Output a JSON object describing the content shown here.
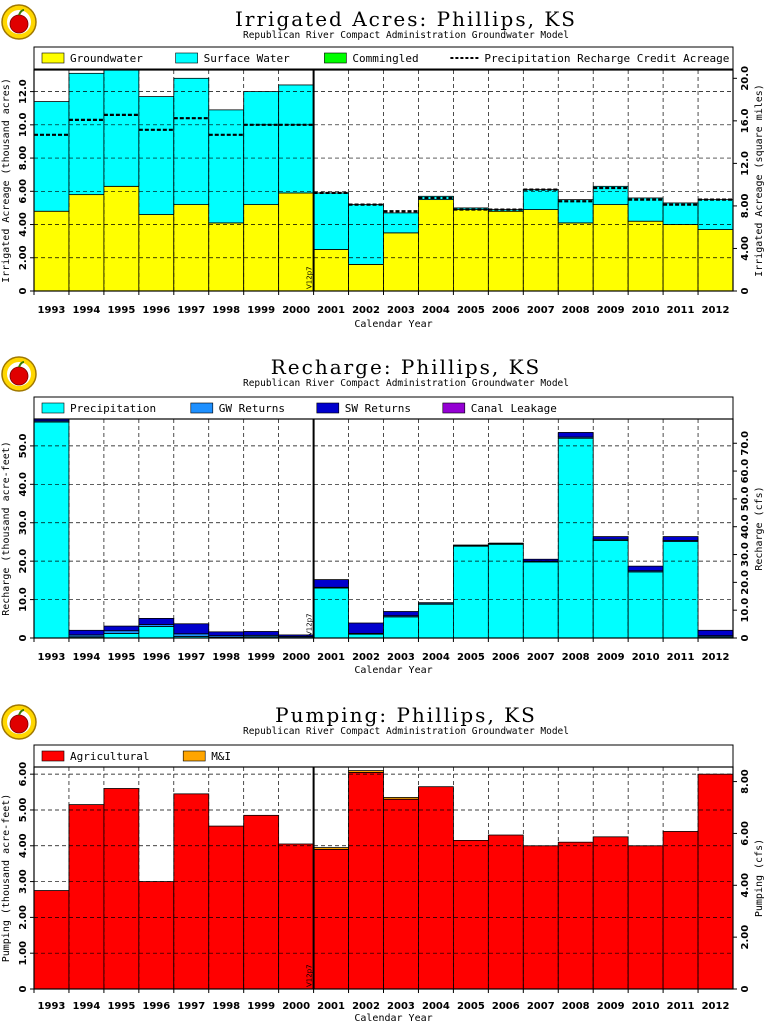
{
  "colors": {
    "groundwater": "#ffff00",
    "surface_water": "#00ffff",
    "commingled": "#00ff00",
    "precipitation": "#00ffff",
    "gw_returns": "#1e90ff",
    "sw_returns": "#0000cd",
    "canal_leakage": "#9400d3",
    "agricultural": "#ff0000",
    "mi": "#ffa500"
  },
  "logo_icon": "apple-logo-icon",
  "marker_label": "V12p7",
  "chart_data": [
    {
      "type": "bar",
      "stacked": true,
      "title": "Irrigated Acres: Phillips, KS",
      "subtitle": "Republican River Compact Administration Groundwater Model",
      "xlabel": "Calendar Year",
      "ylabel": "Irrigated Acreage (thousand acres)",
      "y2label": "Irrigated Acreage (square miles)",
      "ylim": [
        0,
        13.3
      ],
      "yticks": [
        "0",
        "2.00",
        "4.00",
        "6.00",
        "8.00",
        "10.0",
        "12.0"
      ],
      "y2ticks": [
        "0",
        "4.00",
        "8.00",
        "12.0",
        "16.0",
        "20.0"
      ],
      "y2_factor": 1.5625,
      "grid": true,
      "legend_position": "top",
      "categories": [
        "1993",
        "1994",
        "1995",
        "1996",
        "1997",
        "1998",
        "1999",
        "2000",
        "2001",
        "2002",
        "2003",
        "2004",
        "2005",
        "2006",
        "2007",
        "2008",
        "2009",
        "2010",
        "2011",
        "2012"
      ],
      "series": [
        {
          "name": "Groundwater",
          "color_key": "groundwater",
          "values": [
            4.8,
            5.8,
            6.3,
            4.6,
            5.2,
            4.1,
            5.2,
            5.9,
            2.5,
            1.6,
            3.5,
            5.5,
            4.9,
            4.8,
            4.9,
            4.1,
            5.2,
            4.2,
            4.0,
            3.7
          ]
        },
        {
          "name": "Surface Water",
          "color_key": "surface_water",
          "values": [
            6.6,
            7.3,
            7.0,
            7.1,
            7.6,
            6.8,
            6.8,
            6.5,
            3.4,
            3.6,
            1.2,
            0.2,
            0.1,
            0.1,
            1.2,
            1.4,
            1.1,
            1.4,
            1.3,
            1.8
          ]
        },
        {
          "name": "Commingled",
          "color_key": "commingled",
          "values": [
            0,
            0,
            0,
            0,
            0,
            0,
            0,
            0,
            0,
            0,
            0,
            0,
            0,
            0,
            0,
            0,
            0,
            0,
            0,
            0
          ]
        }
      ],
      "line": {
        "name": "Precipitation Recharge Credit Acreage",
        "values": [
          9.4,
          10.3,
          10.6,
          9.7,
          10.4,
          9.4,
          10.0,
          10.0,
          5.9,
          5.2,
          4.8,
          5.6,
          4.9,
          4.9,
          6.1,
          5.4,
          6.2,
          5.5,
          5.2,
          5.5
        ]
      },
      "marker_year_index": 8
    },
    {
      "type": "bar",
      "stacked": true,
      "title": "Recharge: Phillips, KS",
      "subtitle": "Republican River Compact Administration Groundwater Model",
      "xlabel": "Calendar Year",
      "ylabel": "Recharge (thousand acre-feet)",
      "y2label": "Recharge (cfs)",
      "ylim": [
        0,
        57
      ],
      "yticks": [
        "0",
        "10.0",
        "20.0",
        "30.0",
        "40.0",
        "50.0"
      ],
      "y2ticks": [
        "0",
        "10.0",
        "20.0",
        "30.0",
        "40.0",
        "50.0",
        "60.0",
        "70.0"
      ],
      "y2_factor": 1.381,
      "grid": true,
      "legend_position": "top",
      "categories": [
        "1993",
        "1994",
        "1995",
        "1996",
        "1997",
        "1998",
        "1999",
        "2000",
        "2001",
        "2002",
        "2003",
        "2004",
        "2005",
        "2006",
        "2007",
        "2008",
        "2009",
        "2010",
        "2011",
        "2012"
      ],
      "series": [
        {
          "name": "Precipitation",
          "color_key": "precipitation",
          "values": [
            56.2,
            0.3,
            1.2,
            3.0,
            0.4,
            0.2,
            0.3,
            0.1,
            13.0,
            1.0,
            5.5,
            8.8,
            23.9,
            24.4,
            19.8,
            52.0,
            25.4,
            17.2,
            25.1,
            0.3
          ]
        },
        {
          "name": "GW Returns",
          "color_key": "gw_returns",
          "values": [
            0.3,
            0.5,
            0.7,
            0.5,
            0.7,
            0.4,
            0.4,
            0.3,
            0.2,
            0.2,
            0.3,
            0.3,
            0.2,
            0.2,
            0.2,
            0.3,
            0.3,
            0.3,
            0.3,
            0.3
          ]
        },
        {
          "name": "SW Returns",
          "color_key": "sw_returns",
          "values": [
            0.5,
            1.2,
            1.2,
            1.6,
            2.6,
            1.0,
            1.0,
            0.4,
            2.0,
            2.7,
            1.1,
            0.1,
            0.1,
            0.1,
            0.5,
            1.2,
            0.7,
            1.2,
            1.0,
            1.4
          ]
        },
        {
          "name": "Canal Leakage",
          "color_key": "canal_leakage",
          "values": [
            0,
            0,
            0,
            0,
            0,
            0,
            0,
            0,
            0,
            0,
            0,
            0,
            0,
            0,
            0,
            0,
            0,
            0,
            0,
            0
          ]
        }
      ],
      "marker_year_index": 8
    },
    {
      "type": "bar",
      "stacked": true,
      "title": "Pumping: Phillips, KS",
      "subtitle": "Republican River Compact Administration Groundwater Model",
      "xlabel": "Calendar Year",
      "ylabel": "Pumping (thousand acre-feet)",
      "y2label": "Pumping (cfs)",
      "ylim": [
        0,
        6.2
      ],
      "yticks": [
        "0",
        "1.00",
        "2.00",
        "3.00",
        "4.00",
        "5.00",
        "6.00"
      ],
      "y2ticks": [
        "0",
        "2.00",
        "4.00",
        "6.00",
        "8.00"
      ],
      "y2_factor": 1.381,
      "grid": true,
      "legend_position": "top",
      "categories": [
        "1993",
        "1994",
        "1995",
        "1996",
        "1997",
        "1998",
        "1999",
        "2000",
        "2001",
        "2002",
        "2003",
        "2004",
        "2005",
        "2006",
        "2007",
        "2008",
        "2009",
        "2010",
        "2011",
        "2012"
      ],
      "series": [
        {
          "name": "Agricultural",
          "color_key": "agricultural",
          "values": [
            2.75,
            5.15,
            5.6,
            3.0,
            5.45,
            4.55,
            4.85,
            4.05,
            3.9,
            6.05,
            5.3,
            5.65,
            4.15,
            4.3,
            4.0,
            4.1,
            4.25,
            4.0,
            4.4,
            6.0
          ]
        },
        {
          "name": "M&I",
          "color_key": "mi",
          "values": [
            0,
            0,
            0,
            0,
            0,
            0,
            0,
            0,
            0.05,
            0.05,
            0.05,
            0,
            0,
            0,
            0,
            0,
            0,
            0,
            0,
            0
          ]
        }
      ],
      "marker_year_index": 8
    }
  ]
}
